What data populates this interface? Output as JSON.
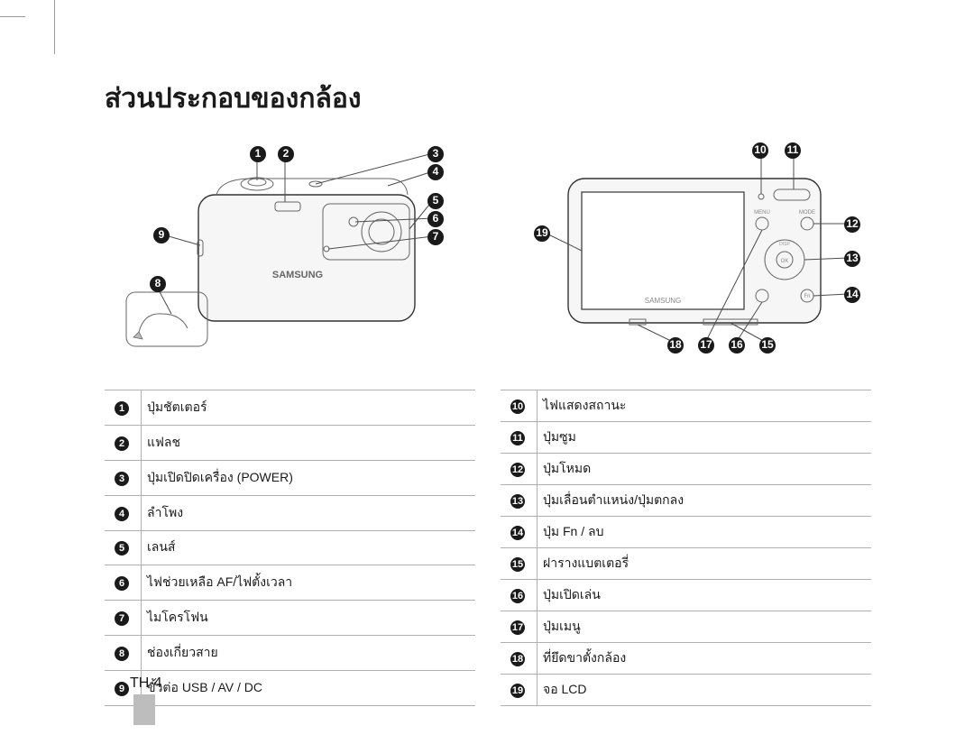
{
  "title": "ส่วนประกอบของกล้อง",
  "page_number": "TH-4",
  "left_diagram": {
    "callouts": [
      "1",
      "2",
      "3",
      "4",
      "5",
      "6",
      "7",
      "8",
      "9"
    ]
  },
  "right_diagram": {
    "callouts": [
      "10",
      "11",
      "12",
      "13",
      "14",
      "15",
      "16",
      "17",
      "18",
      "19"
    ]
  },
  "parts_left": [
    {
      "n": "1",
      "label": "ปุ่มชัตเตอร์"
    },
    {
      "n": "2",
      "label": "แฟลช"
    },
    {
      "n": "3",
      "label": "ปุ่มเปิดปิดเครื่อง (POWER)"
    },
    {
      "n": "4",
      "label": "ลำโพง"
    },
    {
      "n": "5",
      "label": "เลนส์"
    },
    {
      "n": "6",
      "label": "ไฟช่วยเหลือ AF/ไฟตั้งเวลา"
    },
    {
      "n": "7",
      "label": "ไมโครโฟน"
    },
    {
      "n": "8",
      "label": "ช่องเกี่ยวสาย"
    },
    {
      "n": "9",
      "label": "ขั้วต่อ USB / AV / DC"
    }
  ],
  "parts_right": [
    {
      "n": "10",
      "label": "ไฟแสดงสถานะ"
    },
    {
      "n": "11",
      "label": "ปุ่มซูม"
    },
    {
      "n": "12",
      "label": "ปุ่มโหมด"
    },
    {
      "n": "13",
      "label": "ปุ่มเลื่อนตำแหน่ง/ปุ่มตกลง"
    },
    {
      "n": "14",
      "label": "ปุ่ม Fn / ลบ"
    },
    {
      "n": "15",
      "label": "ฝารางแบตเตอรี่"
    },
    {
      "n": "16",
      "label": "ปุ่มเปิดเล่น"
    },
    {
      "n": "17",
      "label": "ปุ่มเมนู"
    },
    {
      "n": "18",
      "label": "ที่ยึดขาตั้งกล้อง"
    },
    {
      "n": "19",
      "label": "จอ LCD"
    }
  ],
  "colors": {
    "text": "#1a1a1a",
    "rule": "#b0b0b0",
    "crop": "#9a9a9a",
    "bullet_bg": "#1a1a1a",
    "bullet_fg": "#ffffff",
    "page_bar": "#bdbdbd"
  }
}
